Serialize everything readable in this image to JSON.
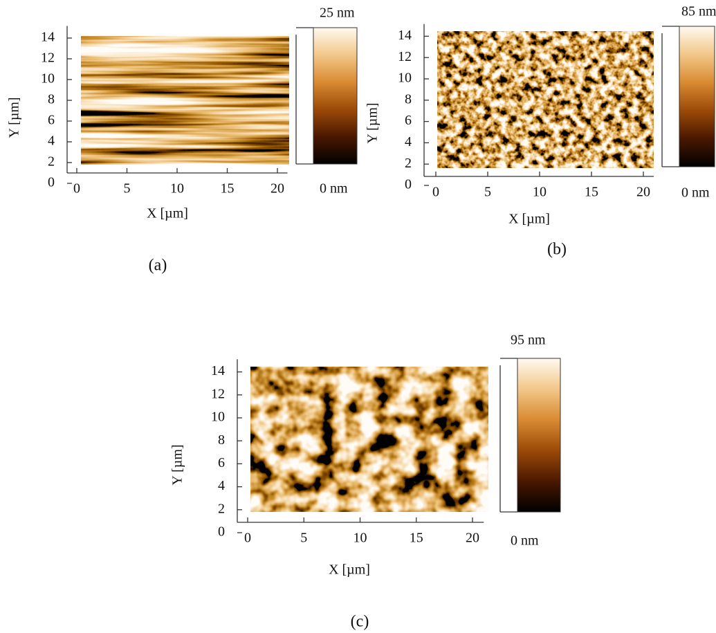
{
  "chart_data": [
    {
      "type": "image",
      "panel_label": "(a)",
      "xlabel": "X [µm]",
      "ylabel": "Y [µm]",
      "xlim": [
        0,
        21
      ],
      "xticks": [
        0,
        5,
        10,
        15,
        20
      ],
      "ylim": [
        0,
        14.5
      ],
      "yticks": [
        0,
        2,
        4,
        6,
        8,
        10,
        12,
        14
      ],
      "zlim": [
        0,
        25
      ],
      "zticks": [
        {
          "value": 0,
          "label": "0 nm"
        },
        {
          "value": 25,
          "label": "25 nm"
        }
      ],
      "colormap": [
        "#000000",
        "#4a1800",
        "#9c4a08",
        "#d98a32",
        "#f2c789",
        "#fffaf0"
      ]
    },
    {
      "type": "image",
      "panel_label": "(b)",
      "xlabel": "X [µm]",
      "ylabel": "Y [µm]",
      "xlim": [
        0,
        21
      ],
      "xticks": [
        0,
        5,
        10,
        15,
        20
      ],
      "ylim": [
        0,
        14.5
      ],
      "yticks": [
        0,
        2,
        4,
        6,
        8,
        10,
        12,
        14
      ],
      "zlim": [
        0,
        85
      ],
      "zticks": [
        {
          "value": 0,
          "label": "0 nm"
        },
        {
          "value": 85,
          "label": "85 nm"
        }
      ],
      "colormap": [
        "#000000",
        "#4a1800",
        "#9c4a08",
        "#d98a32",
        "#f2c789",
        "#fffaf0"
      ]
    },
    {
      "type": "image",
      "panel_label": "(c)",
      "xlabel": "X [µm]",
      "ylabel": "Y [µm]",
      "xlim": [
        0,
        21
      ],
      "xticks": [
        0,
        5,
        10,
        15,
        20
      ],
      "ylim": [
        0,
        14.5
      ],
      "yticks": [
        0,
        2,
        4,
        6,
        8,
        10,
        12,
        14
      ],
      "zlim": [
        0,
        95
      ],
      "zticks": [
        {
          "value": 0,
          "label": "0 nm"
        },
        {
          "value": 95,
          "label": "95 nm"
        }
      ],
      "colormap": [
        "#000000",
        "#4a1800",
        "#9c4a08",
        "#d98a32",
        "#f2c789",
        "#fffaf0"
      ]
    }
  ]
}
